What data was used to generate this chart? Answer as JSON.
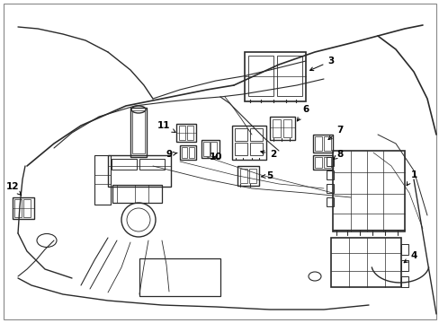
{
  "background_color": "#ffffff",
  "line_color": "#2a2a2a",
  "label_color": "#000000",
  "fig_width": 4.89,
  "fig_height": 3.6,
  "dpi": 100,
  "border_color": "#cccccc",
  "lw_main": 1.0,
  "lw_thin": 0.6,
  "lw_thick": 1.3
}
